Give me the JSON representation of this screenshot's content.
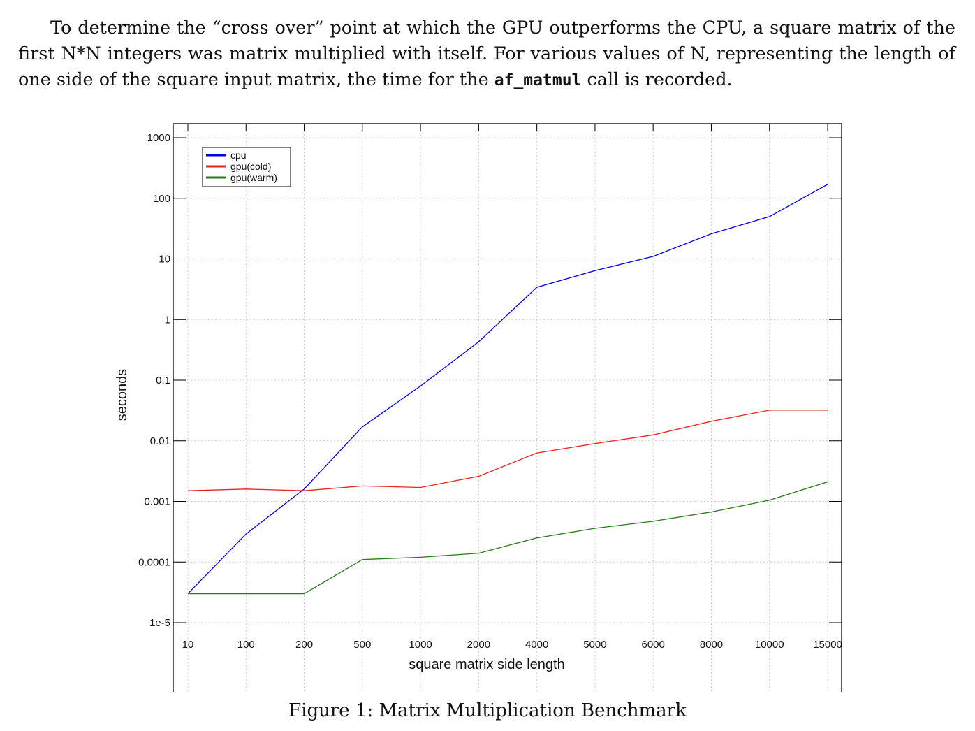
{
  "paragraph": {
    "text_before": "To determine the “cross over” point at which the GPU outperforms the CPU, a square matrix of the first N*N integers was matrix multiplied with itself. For various values of N, representing the length of one side of the square input matrix, the time for the ",
    "code": "af_matmul",
    "text_after": " call is recorded."
  },
  "caption": "Figure 1: Matrix Multiplication Benchmark",
  "chart_data": {
    "type": "line",
    "xlabel": "square matrix side length",
    "ylabel": "seconds",
    "y_scale": "log",
    "ylim": [
      1e-05,
      1000
    ],
    "grid": true,
    "legend_position": "top-left",
    "categories": [
      "10",
      "100",
      "200",
      "500",
      "1000",
      "2000",
      "4000",
      "5000",
      "6000",
      "8000",
      "10000",
      "15000"
    ],
    "y_ticks": [
      {
        "value": 1e-05,
        "label": "1e-5"
      },
      {
        "value": 0.0001,
        "label": "0.0001"
      },
      {
        "value": 0.001,
        "label": "0.001"
      },
      {
        "value": 0.01,
        "label": "0.01"
      },
      {
        "value": 0.1,
        "label": "0.1"
      },
      {
        "value": 1,
        "label": "1"
      },
      {
        "value": 10,
        "label": "10"
      },
      {
        "value": 100,
        "label": "100"
      },
      {
        "value": 1000,
        "label": "1000"
      }
    ],
    "series": [
      {
        "name": "cpu",
        "color": "#0000ee",
        "values": [
          3e-05,
          0.00029,
          0.0016,
          0.017,
          0.08,
          0.43,
          3.4,
          6.4,
          11,
          26,
          50,
          170
        ]
      },
      {
        "name": "gpu(cold)",
        "color": "#ee2222",
        "values": [
          0.0015,
          0.0016,
          0.0015,
          0.0018,
          0.0017,
          0.0026,
          0.0063,
          0.009,
          0.0125,
          0.021,
          0.032,
          0.032
        ]
      },
      {
        "name": "gpu(warm)",
        "color": "#2a7a1a",
        "values": [
          3e-05,
          3e-05,
          3e-05,
          0.00011,
          0.00012,
          0.00014,
          0.00025,
          0.00036,
          0.00047,
          0.00067,
          0.00105,
          0.0021
        ]
      }
    ]
  }
}
